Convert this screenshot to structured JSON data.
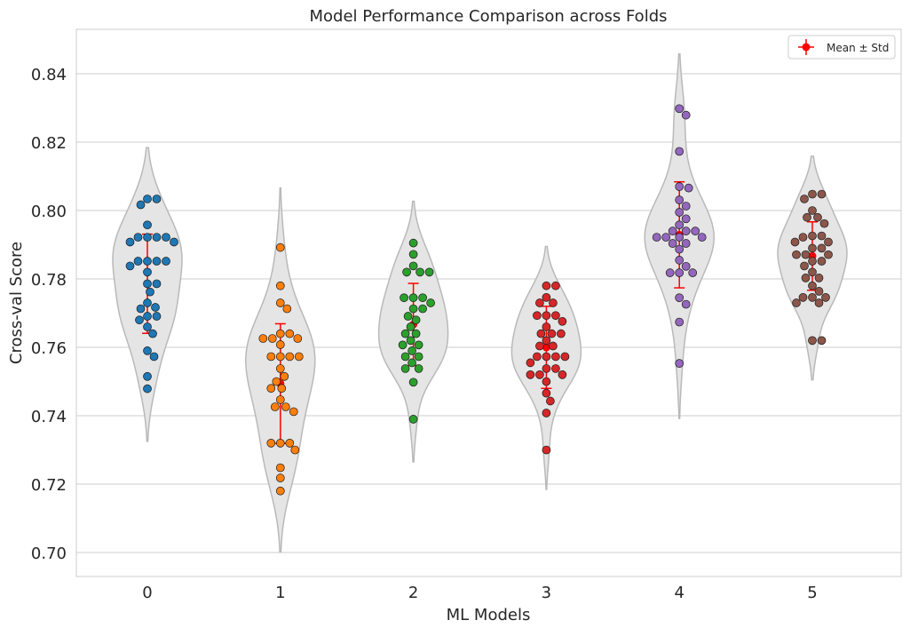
{
  "chart_data": {
    "type": "violin",
    "title": "Model Performance Comparison across Folds",
    "xlabel": "ML Models",
    "ylabel": "Cross-val Score",
    "ylim": [
      0.693,
      0.853
    ],
    "yticks": [
      "0.70",
      "0.72",
      "0.74",
      "0.76",
      "0.78",
      "0.80",
      "0.82",
      "0.84"
    ],
    "grid": true,
    "legend": {
      "label": "Mean ± Std",
      "placement": "top-right"
    },
    "colors": {
      "violin_fill": "#e5e5e5",
      "violin_edge": "#b9b9b9",
      "mean_marker": "#ff0000",
      "grid": "#cccccc",
      "text": "#262626"
    },
    "models": [
      {
        "category": "0",
        "color": "#1f77b4",
        "mean": 0.7786,
        "std": 0.0145,
        "kde_min": 0.7325,
        "kde_max": 0.8184,
        "scores": [
          0.8034,
          0.8034,
          0.8017,
          0.7958,
          0.7922,
          0.7922,
          0.7922,
          0.7922,
          0.7908,
          0.7908,
          0.7852,
          0.7852,
          0.7852,
          0.7852,
          0.7838,
          0.782,
          0.7786,
          0.7786,
          0.7762,
          0.773,
          0.7717,
          0.7713,
          0.7691,
          0.7691,
          0.768,
          0.766,
          0.764,
          0.759,
          0.7573,
          0.7515,
          0.7479
        ]
      },
      {
        "category": "1",
        "color": "#ff7f0e",
        "mean": 0.7494,
        "std": 0.0175,
        "kde_min": 0.7002,
        "kde_max": 0.8066,
        "scores": [
          0.7892,
          0.778,
          0.773,
          0.7713,
          0.764,
          0.764,
          0.7626,
          0.7626,
          0.7626,
          0.7608,
          0.7573,
          0.7573,
          0.7573,
          0.7573,
          0.7538,
          0.7515,
          0.75,
          0.748,
          0.748,
          0.7447,
          0.7426,
          0.7426,
          0.7412,
          0.732,
          0.732,
          0.732,
          0.73,
          0.7248,
          0.7218,
          0.718
        ]
      },
      {
        "category": "2",
        "color": "#2ca02c",
        "mean": 0.7667,
        "std": 0.012,
        "kde_min": 0.7265,
        "kde_max": 0.8027,
        "scores": [
          0.7905,
          0.7872,
          0.7838,
          0.782,
          0.782,
          0.782,
          0.7745,
          0.7745,
          0.7745,
          0.773,
          0.7713,
          0.7713,
          0.7691,
          0.768,
          0.766,
          0.764,
          0.764,
          0.762,
          0.7607,
          0.7607,
          0.759,
          0.7573,
          0.7573,
          0.7555,
          0.7538,
          0.7538,
          0.7498,
          0.739
        ]
      },
      {
        "category": "3",
        "color": "#d62728",
        "mean": 0.76,
        "std": 0.012,
        "kde_min": 0.7185,
        "kde_max": 0.7895,
        "scores": [
          0.778,
          0.778,
          0.7746,
          0.773,
          0.773,
          0.7693,
          0.7693,
          0.7693,
          0.7676,
          0.766,
          0.764,
          0.764,
          0.764,
          0.762,
          0.7604,
          0.7604,
          0.7573,
          0.7573,
          0.7573,
          0.7573,
          0.7555,
          0.7538,
          0.7538,
          0.752,
          0.752,
          0.752,
          0.75,
          0.7466,
          0.7443,
          0.7408,
          0.73
        ]
      },
      {
        "category": "4",
        "color": "#9467bd",
        "mean": 0.7929,
        "std": 0.0155,
        "kde_min": 0.7392,
        "kde_max": 0.8458,
        "scores": [
          0.8298,
          0.8279,
          0.8173,
          0.807,
          0.8066,
          0.8031,
          0.8013,
          0.7995,
          0.7976,
          0.7958,
          0.794,
          0.794,
          0.794,
          0.7922,
          0.7922,
          0.7922,
          0.7922,
          0.7904,
          0.7904,
          0.7887,
          0.7855,
          0.7837,
          0.7818,
          0.7818,
          0.7818,
          0.7745,
          0.7726,
          0.7674,
          0.7553
        ]
      },
      {
        "category": "5",
        "color": "#8c564b",
        "mean": 0.7867,
        "std": 0.01,
        "kde_min": 0.7505,
        "kde_max": 0.8159,
        "scores": [
          0.8048,
          0.8048,
          0.8034,
          0.8,
          0.798,
          0.798,
          0.7962,
          0.7926,
          0.7926,
          0.7922,
          0.7908,
          0.7908,
          0.789,
          0.789,
          0.7871,
          0.7871,
          0.7871,
          0.7852,
          0.7852,
          0.7838,
          0.782,
          0.7803,
          0.7803,
          0.778,
          0.7764,
          0.7746,
          0.7746,
          0.7746,
          0.773,
          0.773,
          0.762,
          0.762
        ]
      }
    ]
  }
}
